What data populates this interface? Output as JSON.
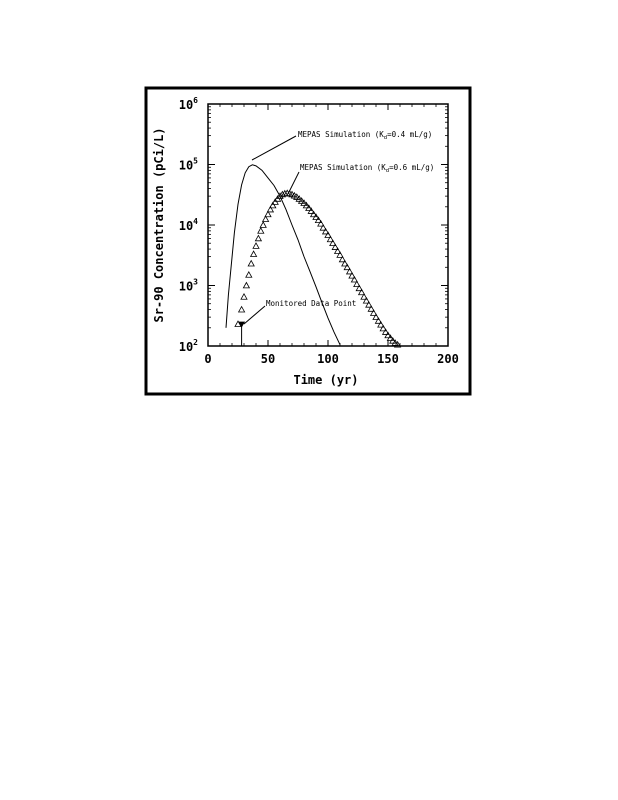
{
  "chart_data": {
    "type": "line",
    "xlabel": "Time (yr)",
    "ylabel": "Sr-90 Concentration (pCi/L)",
    "xlim": [
      0,
      200
    ],
    "ylim": [
      100,
      1000000
    ],
    "y_scale": "log",
    "x_ticks": [
      0,
      50,
      100,
      150,
      200
    ],
    "x_tick_labels": [
      "0",
      "50",
      "100",
      "150",
      "200"
    ],
    "y_ticks": [
      100,
      1000,
      10000,
      100000,
      1000000
    ],
    "y_tick_labels": [
      {
        "base": "10",
        "exp": "2"
      },
      {
        "base": "10",
        "exp": "3"
      },
      {
        "base": "10",
        "exp": "4"
      },
      {
        "base": "10",
        "exp": "5"
      },
      {
        "base": "10",
        "exp": "6"
      }
    ],
    "grid": false,
    "series": [
      {
        "label": "MEPAS Simulation (K_d=0.4 mL/g)",
        "style": "solid-line",
        "x": [
          15,
          17,
          20,
          22,
          25,
          28,
          31,
          34,
          37,
          40,
          45,
          50,
          55,
          60,
          65,
          70,
          75,
          80,
          85,
          90,
          95,
          100,
          105,
          110
        ],
        "y": [
          200,
          700,
          2900,
          7500,
          22000,
          46000,
          73000,
          92000,
          99000,
          95000,
          80000,
          60000,
          45000,
          30000,
          18000,
          10000,
          5700,
          3000,
          1700,
          950,
          520,
          290,
          170,
          105
        ]
      },
      {
        "label": "MEPAS Simulation (K_d=0.6 mL/g)",
        "style": "triangles",
        "x": [
          25,
          28,
          30,
          32,
          34,
          36,
          38,
          40,
          42,
          44,
          46,
          48,
          50,
          52,
          54,
          56,
          58,
          60,
          62,
          64,
          66,
          68,
          70,
          72,
          74,
          76,
          78,
          80,
          82,
          84,
          86,
          88,
          90,
          92,
          94,
          96,
          98,
          100,
          102,
          104,
          106,
          108,
          110,
          112,
          114,
          116,
          118,
          120,
          122,
          124,
          126,
          128,
          130,
          132,
          134,
          136,
          138,
          140,
          142,
          144,
          146,
          148,
          150,
          152,
          154,
          156,
          158
        ],
        "y": [
          230,
          400,
          650,
          1000,
          1500,
          2300,
          3300,
          4500,
          6000,
          8000,
          10000,
          12500,
          15000,
          18000,
          21000,
          24000,
          27000,
          30000,
          32000,
          33000,
          33500,
          33000,
          32000,
          30500,
          29000,
          27000,
          25000,
          23000,
          21000,
          19000,
          17000,
          15000,
          13500,
          12000,
          10500,
          9000,
          7800,
          6800,
          5800,
          5000,
          4300,
          3700,
          3200,
          2700,
          2300,
          2000,
          1700,
          1450,
          1250,
          1050,
          900,
          770,
          650,
          560,
          480,
          410,
          350,
          300,
          260,
          225,
          195,
          170,
          150,
          135,
          122,
          112,
          105
        ]
      }
    ],
    "monitored_point": {
      "label": "Monitored Data Point",
      "x": 28,
      "y": 230
    },
    "annotations": [
      {
        "text": "MEPAS Simulation (K",
        "sub": "d",
        "suffix": "=0.4 mL/g)"
      },
      {
        "text": "MEPAS Simulation (K",
        "sub": "d",
        "suffix": "=0.6 mL/g)"
      },
      {
        "text": "Monitored Data Point"
      }
    ]
  }
}
